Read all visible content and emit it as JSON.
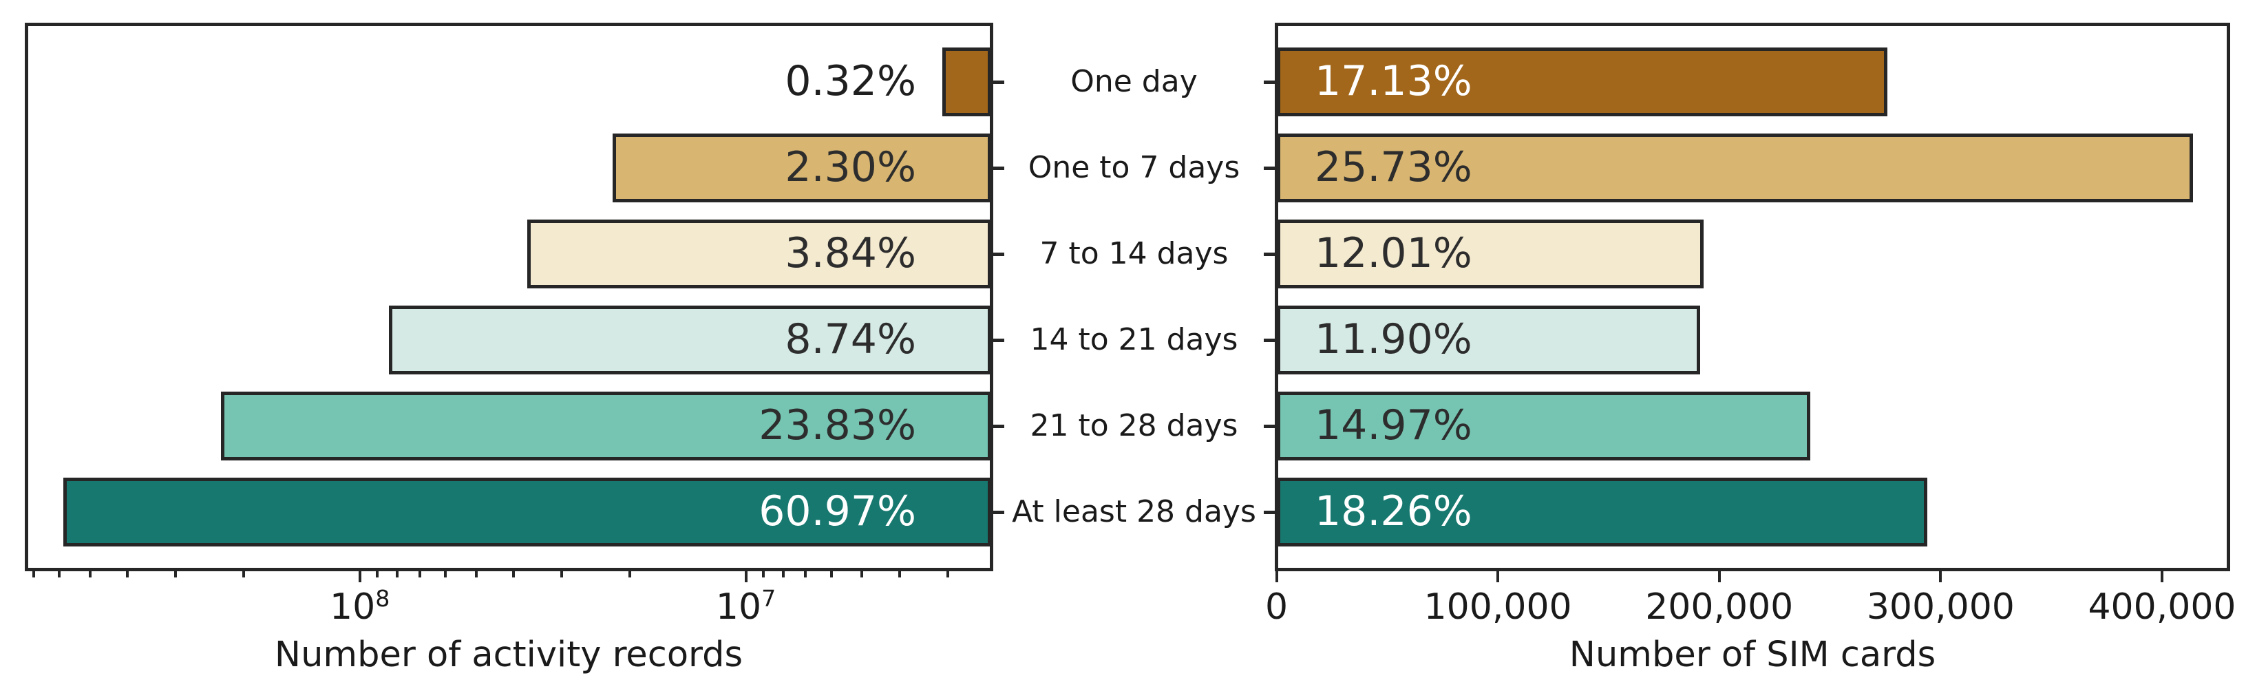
{
  "chart_data": {
    "type": "bar",
    "orientation": "horizontal",
    "layout": "back-to-back",
    "grid": false,
    "legend": false,
    "categories": [
      "One day",
      "One to 7 days",
      "7 to 14 days",
      "14 to 21 days",
      "21 to 28 days",
      "At least 28 days"
    ],
    "bar_colors": [
      "#a2671a",
      "#d8b671",
      "#f4ead0",
      "#d5eae5",
      "#76c4b2",
      "#17786f"
    ],
    "bar_edge_color": "#262626",
    "text_color": "#1a1a1a",
    "left_chart": {
      "xlabel": "Number of activity records",
      "xscale": "log",
      "inverted": true,
      "xlim": [
        730000000,
        2310000
      ],
      "xticks": [
        {
          "value": 100000000,
          "base": "10",
          "exp": "8"
        },
        {
          "value": 10000000,
          "base": "10",
          "exp": "7"
        }
      ],
      "minor_ticks": true,
      "values": [
        3100000,
        22100000,
        36900000,
        84000000,
        229000000,
        586000000
      ],
      "bar_labels": [
        "0.32%",
        "2.30%",
        "3.84%",
        "8.74%",
        "23.83%",
        "60.97%"
      ],
      "bar_label_colors": [
        "#1f1f1f",
        "#2d2d2d",
        "#2d2d2d",
        "#2d2d2d",
        "#2d2d2d",
        "#ffffff"
      ]
    },
    "right_chart": {
      "xlabel": "Number of SIM cards",
      "xscale": "linear",
      "xlim": [
        0,
        430000
      ],
      "xticks": [
        {
          "value": 0,
          "label": "0"
        },
        {
          "value": 100000,
          "label": "100,000"
        },
        {
          "value": 200000,
          "label": "200,000"
        },
        {
          "value": 300000,
          "label": "300,000"
        },
        {
          "value": 400000,
          "label": "400,000"
        }
      ],
      "minor_ticks": false,
      "values": [
        276000,
        414000,
        193000,
        191500,
        241000,
        294000
      ],
      "bar_labels": [
        "17.13%",
        "25.73%",
        "12.01%",
        "11.90%",
        "14.97%",
        "18.26%"
      ],
      "bar_label_colors": [
        "#ffffff",
        "#2d2d2d",
        "#2d2d2d",
        "#2d2d2d",
        "#2d2d2d",
        "#ffffff"
      ]
    }
  }
}
